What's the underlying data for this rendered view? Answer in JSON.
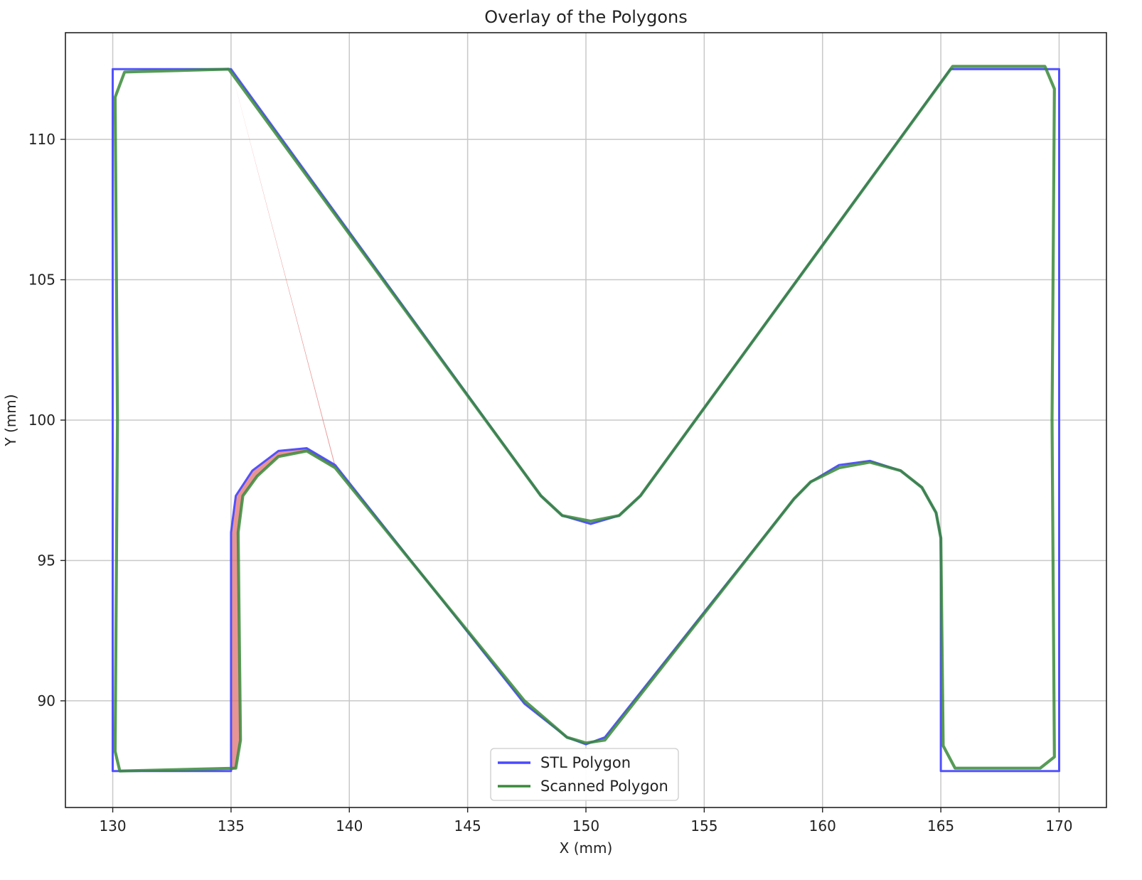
{
  "chart_data": {
    "type": "line",
    "title": "Overlay of the Polygons",
    "xlabel": "X (mm)",
    "ylabel": "Y (mm)",
    "xlim": [
      128,
      172
    ],
    "ylim": [
      86.2,
      113.8
    ],
    "xticks": [
      130,
      135,
      140,
      145,
      150,
      155,
      160,
      165,
      170
    ],
    "yticks": [
      90,
      95,
      100,
      105,
      110
    ],
    "grid": true,
    "legend_position": "bottom-center",
    "series": [
      {
        "name": "STL Polygon",
        "color": "#4a4aff",
        "points": [
          [
            130,
            87.5
          ],
          [
            130,
            112.5
          ],
          [
            135,
            112.5
          ],
          [
            148.1,
            97.3
          ],
          [
            149.0,
            96.6
          ],
          [
            150.2,
            96.3
          ],
          [
            151.4,
            96.6
          ],
          [
            152.3,
            97.3
          ],
          [
            165.4,
            112.5
          ],
          [
            170,
            112.5
          ],
          [
            170,
            87.5
          ],
          [
            165,
            87.5
          ],
          [
            165,
            95.8
          ],
          [
            164.8,
            96.7
          ],
          [
            164.2,
            97.6
          ],
          [
            163.3,
            98.2
          ],
          [
            162.0,
            98.55
          ],
          [
            160.7,
            98.4
          ],
          [
            159.5,
            97.8
          ],
          [
            158.8,
            97.2
          ],
          [
            150.8,
            88.7
          ],
          [
            150.0,
            88.45
          ],
          [
            149.2,
            88.7
          ],
          [
            147.4,
            89.9
          ],
          [
            139.4,
            98.4
          ],
          [
            138.2,
            99.0
          ],
          [
            137.0,
            98.9
          ],
          [
            135.9,
            98.2
          ],
          [
            135.2,
            97.3
          ],
          [
            135,
            96.0
          ],
          [
            135,
            87.5
          ],
          [
            130,
            87.5
          ]
        ]
      },
      {
        "name": "Scanned Polygon",
        "color": "#3a8a3a",
        "points": [
          [
            130.3,
            87.5
          ],
          [
            130.1,
            88.2
          ],
          [
            130.2,
            100
          ],
          [
            130.1,
            111.5
          ],
          [
            130.5,
            112.4
          ],
          [
            134.9,
            112.5
          ],
          [
            148.1,
            97.3
          ],
          [
            149.0,
            96.6
          ],
          [
            150.2,
            96.4
          ],
          [
            151.4,
            96.6
          ],
          [
            152.3,
            97.3
          ],
          [
            165.5,
            112.6
          ],
          [
            169.4,
            112.6
          ],
          [
            169.8,
            111.8
          ],
          [
            169.7,
            100
          ],
          [
            169.8,
            88.0
          ],
          [
            169.2,
            87.6
          ],
          [
            165.6,
            87.6
          ],
          [
            165.1,
            88.4
          ],
          [
            165,
            95.8
          ],
          [
            164.8,
            96.7
          ],
          [
            164.2,
            97.6
          ],
          [
            163.3,
            98.2
          ],
          [
            162.0,
            98.5
          ],
          [
            160.7,
            98.3
          ],
          [
            159.5,
            97.8
          ],
          [
            158.8,
            97.2
          ],
          [
            150.8,
            88.6
          ],
          [
            150.0,
            88.5
          ],
          [
            149.2,
            88.7
          ],
          [
            147.4,
            90.0
          ],
          [
            139.4,
            98.3
          ],
          [
            138.2,
            98.9
          ],
          [
            137.0,
            98.7
          ],
          [
            136.1,
            98.0
          ],
          [
            135.5,
            97.3
          ],
          [
            135.3,
            96.0
          ],
          [
            135.4,
            88.6
          ],
          [
            135.2,
            87.6
          ],
          [
            130.3,
            87.5
          ]
        ]
      }
    ],
    "error_fill_color": "#e07070"
  }
}
